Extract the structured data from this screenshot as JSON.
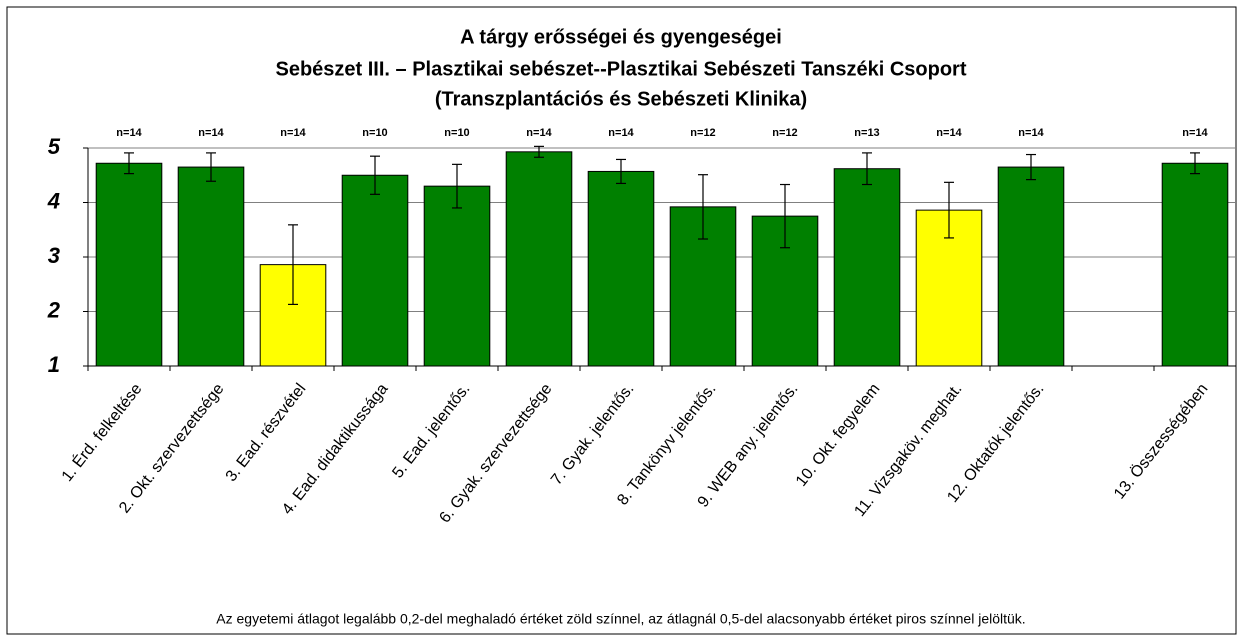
{
  "chart_data": {
    "type": "bar",
    "title": [
      "A tárgy erősségei és gyengeségei",
      "Sebészet III. – Plasztikai sebészet--Plasztikai Sebészeti Tanszéki Csoport",
      "(Transzplantációs és Sebészeti Klinika)"
    ],
    "categories": [
      "1. Érd. felkeltése",
      "2. Okt. szervezettsége",
      "3. Ead. részvétel",
      "4. Ead. didaktikussága",
      "5. Ead. jelentős.",
      "6. Gyak. szervezettsége",
      "7. Gyak. jelentős.",
      "8. Tankönyv jelentős.",
      "9. WEB any. jelentős.",
      "10. Okt. fegyelem",
      "11. Vizsgaköv. meghat.",
      "12. Oktatók jelentős.",
      null,
      "13. Összességében"
    ],
    "values": [
      4.72,
      4.65,
      2.86,
      4.5,
      4.3,
      4.93,
      4.57,
      3.92,
      3.75,
      4.62,
      3.86,
      4.65,
      null,
      4.72
    ],
    "errors": [
      0.19,
      0.26,
      0.73,
      0.35,
      0.4,
      0.1,
      0.22,
      0.59,
      0.58,
      0.29,
      0.51,
      0.23,
      null,
      0.19
    ],
    "n_labels": [
      "n=14",
      "n=14",
      "n=14",
      "n=10",
      "n=10",
      "n=14",
      "n=14",
      "n=12",
      "n=12",
      "n=13",
      "n=14",
      "n=14",
      null,
      "n=14"
    ],
    "colors": [
      "#008000",
      "#008000",
      "#ffff00",
      "#008000",
      "#008000",
      "#008000",
      "#008000",
      "#008000",
      "#008000",
      "#008000",
      "#ffff00",
      "#008000",
      null,
      "#008000"
    ],
    "ylim": [
      1,
      5
    ],
    "yticks": [
      1,
      2,
      3,
      4,
      5
    ],
    "grid": true,
    "footnote": "Az egyetemi átlagot legalább 0,2-del meghaladó értéket zöld színnel, az átlagnál 0,5-del alacsonyabb értéket piros színnel jelöltük."
  }
}
